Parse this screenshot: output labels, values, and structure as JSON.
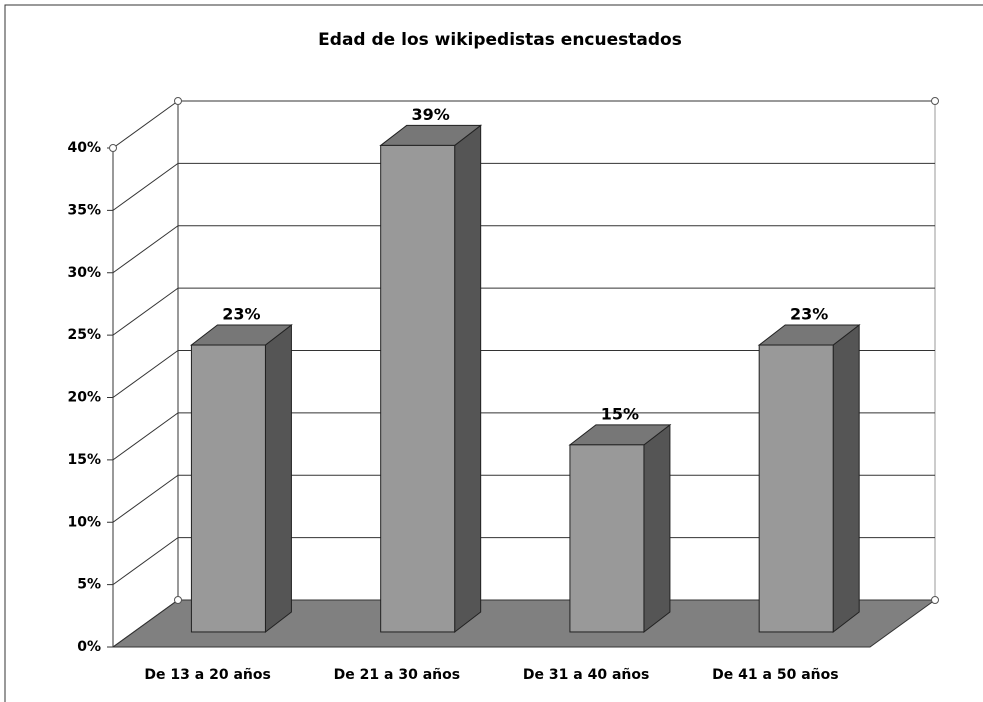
{
  "chart_data": {
    "type": "bar3d",
    "title": "Edad de los wikipedistas encuestados",
    "categories": [
      "De 13 a 20 años",
      "De 21 a 30 años",
      "De 31 a 40 años",
      "De 41 a 50 años"
    ],
    "values": [
      23,
      39,
      15,
      23
    ],
    "value_labels": [
      "23%",
      "39%",
      "15%",
      "23%"
    ],
    "color": "#999999",
    "ylim": [
      0,
      40
    ],
    "yticks": [
      {
        "value": 0,
        "label": "0%"
      },
      {
        "value": 5,
        "label": "5%"
      },
      {
        "value": 10,
        "label": "10%"
      },
      {
        "value": 15,
        "label": "15%"
      },
      {
        "value": 20,
        "label": "20%"
      },
      {
        "value": 25,
        "label": "25%"
      },
      {
        "value": 30,
        "label": "30%"
      },
      {
        "value": 35,
        "label": "35%"
      },
      {
        "value": 40,
        "label": "40%"
      }
    ],
    "grid": true
  }
}
